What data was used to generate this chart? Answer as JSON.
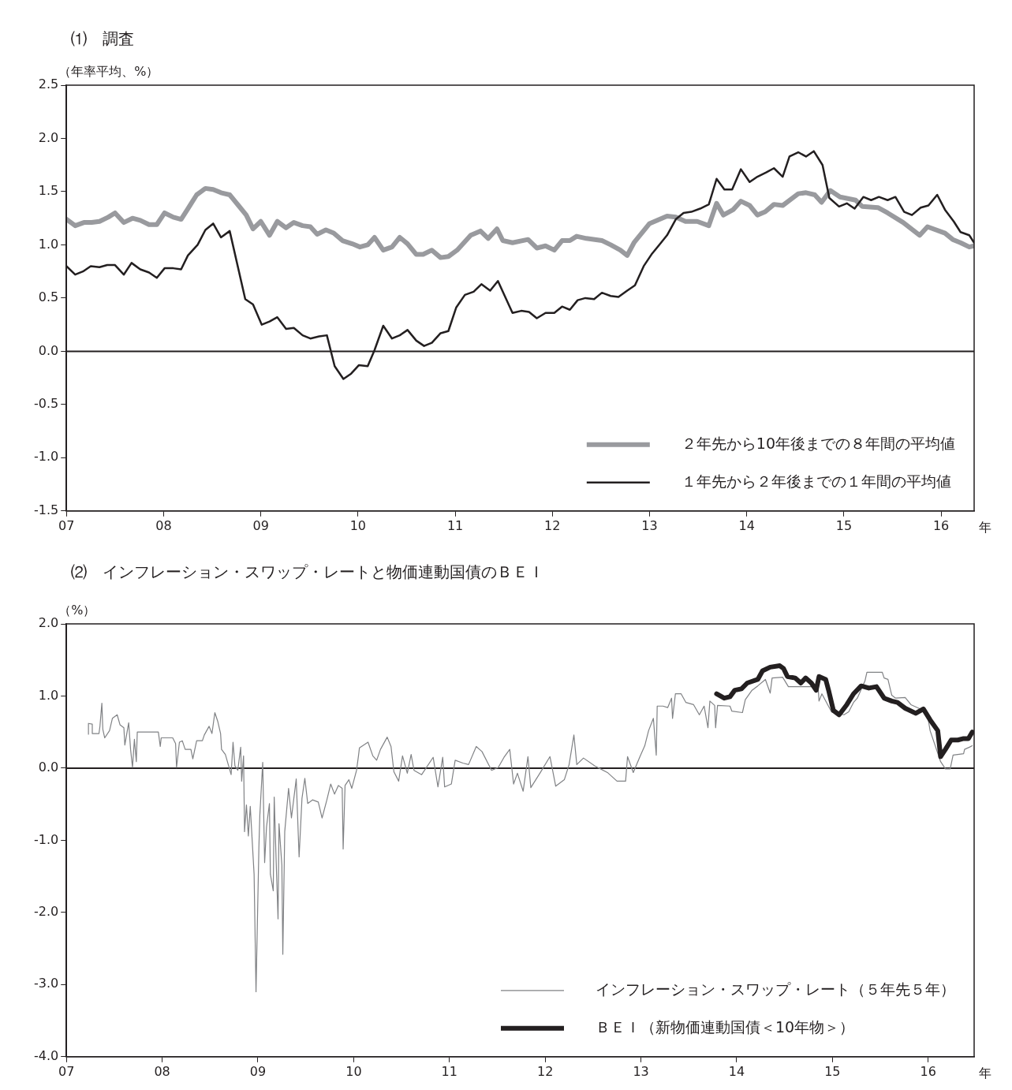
{
  "chart_data": [
    {
      "type": "line",
      "title": "⑴　調査",
      "ylabel": "（年率平均、%）",
      "xlabel": "年",
      "xlim": [
        2007,
        2016.34
      ],
      "xticks": [
        {
          "value": 2007,
          "label": "07"
        },
        {
          "value": 2008,
          "label": "08"
        },
        {
          "value": 2009,
          "label": "09"
        },
        {
          "value": 2010,
          "label": "10"
        },
        {
          "value": 2011,
          "label": "11"
        },
        {
          "value": 2012,
          "label": "12"
        },
        {
          "value": 2013,
          "label": "13"
        },
        {
          "value": 2014,
          "label": "14"
        },
        {
          "value": 2015,
          "label": "15"
        },
        {
          "value": 2016,
          "label": "16"
        }
      ],
      "ylim": [
        -1.5,
        2.5
      ],
      "yticks": [
        {
          "value": -1.5,
          "label": "-1.5"
        },
        {
          "value": -1,
          "label": "-1.0"
        },
        {
          "value": -0.5,
          "label": "-0.5"
        },
        {
          "value": 0,
          "label": "0.0"
        },
        {
          "value": 0.5,
          "label": "0.5"
        },
        {
          "value": 1,
          "label": "1.0"
        },
        {
          "value": 1.5,
          "label": "1.5"
        },
        {
          "value": 2,
          "label": "2.0"
        },
        {
          "value": 2.5,
          "label": "2.5"
        }
      ],
      "grid": false,
      "marker": "none",
      "legend": "bottom right",
      "ref_lines": [
        {
          "axis": "y",
          "value": 0,
          "color": "#231f20"
        }
      ],
      "series": [
        {
          "name": "２年先から10年後までの８年間の平均値",
          "color": "#999a9e",
          "x": [
            2007.0,
            2007.09,
            2007.18,
            2007.26,
            2007.34,
            2007.43,
            2007.5,
            2007.59,
            2007.68,
            2007.76,
            2007.85,
            2007.93,
            2008.01,
            2008.1,
            2008.18,
            2008.25,
            2008.34,
            2008.43,
            2008.51,
            2008.59,
            2008.68,
            2008.77,
            2008.85,
            2008.92,
            2009.0,
            2009.09,
            2009.17,
            2009.26,
            2009.34,
            2009.43,
            2009.51,
            2009.58,
            2009.67,
            2009.75,
            2009.84,
            2009.94,
            2010.02,
            2010.1,
            2010.17,
            2010.26,
            2010.35,
            2010.43,
            2010.51,
            2010.6,
            2010.67,
            2010.76,
            2010.85,
            2010.93,
            2011.02,
            2011.16,
            2011.26,
            2011.34,
            2011.43,
            2011.49,
            2011.59,
            2011.75,
            2011.84,
            2011.93,
            2012.02,
            2012.1,
            2012.18,
            2012.25,
            2012.35,
            2012.51,
            2012.6,
            2012.7,
            2012.77,
            2012.84,
            2013.0,
            2013.18,
            2013.27,
            2013.37,
            2013.49,
            2013.61,
            2013.69,
            2013.76,
            2013.86,
            2013.94,
            2014.03,
            2014.11,
            2014.19,
            2014.28,
            2014.37,
            2014.53,
            2014.61,
            2014.7,
            2014.77,
            2014.86,
            2014.96,
            2015.12,
            2015.19,
            2015.35,
            2015.45,
            2015.61,
            2015.78,
            2015.86,
            2016.04,
            2016.12,
            2016.2,
            2016.29,
            2016.34
          ],
          "values": [
            1.24,
            1.18,
            1.21,
            1.21,
            1.22,
            1.26,
            1.3,
            1.21,
            1.25,
            1.23,
            1.19,
            1.19,
            1.3,
            1.26,
            1.24,
            1.34,
            1.47,
            1.53,
            1.52,
            1.49,
            1.47,
            1.37,
            1.28,
            1.15,
            1.22,
            1.09,
            1.22,
            1.16,
            1.21,
            1.18,
            1.17,
            1.1,
            1.14,
            1.11,
            1.04,
            1.01,
            0.98,
            1.0,
            1.07,
            0.95,
            0.98,
            1.07,
            1.01,
            0.91,
            0.91,
            0.95,
            0.88,
            0.89,
            0.95,
            1.09,
            1.13,
            1.06,
            1.15,
            1.04,
            1.02,
            1.05,
            0.97,
            0.99,
            0.95,
            1.04,
            1.04,
            1.08,
            1.06,
            1.04,
            1.0,
            0.95,
            0.9,
            1.02,
            1.2,
            1.27,
            1.26,
            1.22,
            1.22,
            1.18,
            1.39,
            1.28,
            1.33,
            1.41,
            1.37,
            1.28,
            1.31,
            1.38,
            1.37,
            1.48,
            1.49,
            1.47,
            1.4,
            1.51,
            1.45,
            1.42,
            1.36,
            1.35,
            1.3,
            1.21,
            1.09,
            1.17,
            1.11,
            1.05,
            1.02,
            0.98,
            0.99
          ]
        },
        {
          "name": "１年先から２年後までの１年間の平均値",
          "color": "#231f20",
          "x": [
            2007.0,
            2007.09,
            2007.17,
            2007.25,
            2007.34,
            2007.42,
            2007.5,
            2007.59,
            2007.67,
            2007.76,
            2007.85,
            2007.93,
            2008.01,
            2008.1,
            2008.18,
            2008.25,
            2008.35,
            2008.43,
            2008.51,
            2008.59,
            2008.68,
            2008.84,
            2008.92,
            2009.01,
            2009.09,
            2009.17,
            2009.26,
            2009.34,
            2009.43,
            2009.51,
            2009.6,
            2009.68,
            2009.76,
            2009.85,
            2009.93,
            2010.01,
            2010.1,
            2010.17,
            2010.26,
            2010.35,
            2010.43,
            2010.51,
            2010.6,
            2010.68,
            2010.76,
            2010.85,
            2010.93,
            2011.01,
            2011.1,
            2011.19,
            2011.27,
            2011.36,
            2011.44,
            2011.5,
            2011.59,
            2011.68,
            2011.76,
            2011.84,
            2011.93,
            2012.02,
            2012.1,
            2012.18,
            2012.26,
            2012.34,
            2012.43,
            2012.51,
            2012.6,
            2012.68,
            2012.77,
            2012.85,
            2012.94,
            2013.02,
            2013.1,
            2013.18,
            2013.27,
            2013.35,
            2013.43,
            2013.52,
            2013.61,
            2013.69,
            2013.77,
            2013.85,
            2013.94,
            2014.03,
            2014.11,
            2014.2,
            2014.28,
            2014.37,
            2014.44,
            2014.53,
            2014.61,
            2014.69,
            2014.78,
            2014.85,
            2014.95,
            2015.03,
            2015.11,
            2015.2,
            2015.28,
            2015.36,
            2015.45,
            2015.53,
            2015.62,
            2015.7,
            2015.79,
            2015.87,
            2015.96,
            2016.04,
            2016.13,
            2016.2,
            2016.29,
            2016.34
          ],
          "values": [
            0.8,
            0.72,
            0.75,
            0.8,
            0.79,
            0.81,
            0.81,
            0.72,
            0.83,
            0.77,
            0.74,
            0.69,
            0.78,
            0.78,
            0.77,
            0.9,
            1.0,
            1.14,
            1.2,
            1.07,
            1.13,
            0.49,
            0.44,
            0.25,
            0.28,
            0.32,
            0.21,
            0.22,
            0.15,
            0.12,
            0.14,
            0.15,
            -0.14,
            -0.26,
            -0.21,
            -0.13,
            -0.14,
            0.01,
            0.24,
            0.12,
            0.15,
            0.2,
            0.1,
            0.05,
            0.08,
            0.17,
            0.19,
            0.41,
            0.53,
            0.56,
            0.63,
            0.57,
            0.66,
            0.54,
            0.36,
            0.38,
            0.37,
            0.31,
            0.36,
            0.36,
            0.42,
            0.39,
            0.48,
            0.5,
            0.49,
            0.55,
            0.52,
            0.51,
            0.57,
            0.62,
            0.8,
            0.91,
            1.0,
            1.09,
            1.24,
            1.3,
            1.31,
            1.34,
            1.38,
            1.62,
            1.52,
            1.52,
            1.71,
            1.59,
            1.64,
            1.68,
            1.72,
            1.64,
            1.83,
            1.87,
            1.83,
            1.88,
            1.75,
            1.44,
            1.36,
            1.39,
            1.34,
            1.45,
            1.42,
            1.45,
            1.42,
            1.45,
            1.31,
            1.28,
            1.35,
            1.37,
            1.47,
            1.33,
            1.22,
            1.12,
            1.09,
            1.02
          ]
        }
      ]
    },
    {
      "type": "line",
      "title": "⑵　インフレーション・スワップ・レートと物価連動国債のＢＥＩ",
      "ylabel": "（%）",
      "xlabel": "年",
      "xlim": [
        2007,
        2016.48
      ],
      "xticks": [
        {
          "value": 2007,
          "label": "07"
        },
        {
          "value": 2008,
          "label": "08"
        },
        {
          "value": 2009,
          "label": "09"
        },
        {
          "value": 2010,
          "label": "10"
        },
        {
          "value": 2011,
          "label": "11"
        },
        {
          "value": 2012,
          "label": "12"
        },
        {
          "value": 2013,
          "label": "13"
        },
        {
          "value": 2014,
          "label": "14"
        },
        {
          "value": 2015,
          "label": "15"
        },
        {
          "value": 2016,
          "label": "16"
        }
      ],
      "ylim": [
        -4,
        2
      ],
      "yticks": [
        {
          "value": -4,
          "label": "-4.0"
        },
        {
          "value": -3,
          "label": "-3.0"
        },
        {
          "value": -2,
          "label": "-2.0"
        },
        {
          "value": -1,
          "label": "-1.0"
        },
        {
          "value": 0,
          "label": "0.0"
        },
        {
          "value": 1,
          "label": "1.0"
        },
        {
          "value": 2,
          "label": "2.0"
        }
      ],
      "grid": false,
      "marker": "none",
      "legend": "bottom right",
      "ref_lines": [
        {
          "axis": "y",
          "value": 0,
          "color": "#231f20"
        }
      ],
      "series": [
        {
          "name": "インフレーション・スワップ・レート（５年先５年）",
          "color": "#808285",
          "x": [
            2007.23,
            2007.23,
            2007.27,
            2007.27,
            2007.34,
            2007.35,
            2007.37,
            2007.38,
            2007.4,
            2007.45,
            2007.48,
            2007.53,
            2007.56,
            2007.6,
            2007.61,
            2007.65,
            2007.67,
            2007.69,
            2007.71,
            2007.73,
            2007.74,
            2007.96,
            2007.98,
            2007.99,
            2008.11,
            2008.14,
            2008.15,
            2008.18,
            2008.21,
            2008.24,
            2008.3,
            2008.32,
            2008.36,
            2008.42,
            2008.44,
            2008.49,
            2008.52,
            2008.55,
            2008.58,
            2008.61,
            2008.62,
            2008.66,
            2008.72,
            2008.74,
            2008.76,
            2008.79,
            2008.82,
            2008.83,
            2008.85,
            2008.86,
            2008.88,
            2008.9,
            2008.92,
            2008.96,
            2008.98,
            2009.01,
            2009.02,
            2009.05,
            2009.07,
            2009.09,
            2009.12,
            2009.13,
            2009.16,
            2009.17,
            2009.19,
            2009.21,
            2009.22,
            2009.25,
            2009.26,
            2009.28,
            2009.32,
            2009.35,
            2009.4,
            2009.43,
            2009.46,
            2009.49,
            2009.52,
            2009.57,
            2009.63,
            2009.67,
            2009.72,
            2009.76,
            2009.8,
            2009.84,
            2009.88,
            2009.89,
            2009.91,
            2009.95,
            2009.98,
            2010.03,
            2010.05,
            2010.06,
            2010.15,
            2010.2,
            2010.24,
            2010.28,
            2010.35,
            2010.39,
            2010.42,
            2010.47,
            2010.51,
            2010.56,
            2010.6,
            2010.63,
            2010.71,
            2010.83,
            2010.88,
            2010.93,
            2010.95,
            2011.02,
            2011.06,
            2011.14,
            2011.2,
            2011.28,
            2011.34,
            2011.44,
            2011.51,
            2011.57,
            2011.63,
            2011.67,
            2011.71,
            2011.77,
            2011.82,
            2011.85,
            2011.95,
            2012.05,
            2012.11,
            2012.2,
            2012.25,
            2012.3,
            2012.33,
            2012.4,
            2012.52,
            2012.65,
            2012.75,
            2012.84,
            2012.86,
            2012.92,
            2012.99,
            2013.04,
            2013.08,
            2013.13,
            2013.16,
            2013.17,
            2013.23,
            2013.28,
            2013.32,
            2013.33,
            2013.36,
            2013.42,
            2013.47,
            2013.55,
            2013.61,
            2013.66,
            2013.7,
            2013.72,
            2013.77,
            2013.78,
            2013.8,
            2013.93,
            2013.95,
            2014.06,
            2014.09,
            2014.16,
            2014.22,
            2014.3,
            2014.35,
            2014.37,
            2014.48,
            2014.54,
            2014.85,
            2014.86,
            2014.89,
            2014.99,
            2015.12,
            2015.17,
            2015.22,
            2015.26,
            2015.34,
            2015.36,
            2015.52,
            2015.54,
            2015.58,
            2015.62,
            2015.66,
            2015.76,
            2015.82,
            2015.92,
            2015.99,
            2016.02,
            2016.13,
            2016.18,
            2016.23,
            2016.26,
            2016.37,
            2016.38,
            2016.43,
            2016.46
          ],
          "values": [
            0.47,
            0.62,
            0.61,
            0.48,
            0.48,
            0.58,
            0.9,
            0.54,
            0.42,
            0.52,
            0.69,
            0.74,
            0.6,
            0.56,
            0.32,
            0.63,
            0.26,
            0.01,
            0.4,
            0.09,
            0.5,
            0.5,
            0.3,
            0.42,
            0.42,
            0.34,
            0.01,
            0.36,
            0.38,
            0.26,
            0.26,
            0.13,
            0.38,
            0.38,
            0.46,
            0.58,
            0.48,
            0.77,
            0.65,
            0.48,
            0.26,
            0.19,
            -0.09,
            0.36,
            0.03,
            -0.03,
            0.29,
            -0.18,
            0.17,
            -0.88,
            -0.51,
            -0.94,
            -0.53,
            -1.47,
            -3.1,
            -1.1,
            -0.65,
            0.08,
            -1.31,
            -0.81,
            -0.49,
            -1.47,
            -1.7,
            -0.4,
            -1.27,
            -2.09,
            -0.77,
            -1.35,
            -2.58,
            -0.88,
            -0.28,
            -0.69,
            -0.15,
            -1.23,
            -0.42,
            -0.14,
            -0.49,
            -0.44,
            -0.47,
            -0.69,
            -0.44,
            -0.22,
            -0.36,
            -0.24,
            -0.28,
            -1.12,
            -0.24,
            -0.16,
            -0.28,
            -0.03,
            0.17,
            0.28,
            0.36,
            0.17,
            0.11,
            0.26,
            0.43,
            0.3,
            -0.05,
            -0.18,
            0.17,
            -0.07,
            0.19,
            -0.03,
            -0.09,
            0.15,
            -0.26,
            0.15,
            -0.26,
            -0.22,
            0.11,
            0.07,
            0.05,
            0.3,
            0.23,
            -0.03,
            0.01,
            0.15,
            0.26,
            -0.22,
            -0.07,
            -0.32,
            0.16,
            -0.27,
            -0.06,
            0.16,
            -0.25,
            -0.16,
            0.05,
            0.46,
            0.05,
            0.14,
            0.03,
            -0.06,
            -0.18,
            -0.18,
            0.16,
            -0.06,
            0.16,
            0.31,
            0.52,
            0.69,
            0.18,
            0.86,
            0.86,
            0.84,
            0.97,
            0.69,
            1.03,
            1.03,
            0.91,
            0.88,
            0.74,
            0.86,
            0.56,
            0.93,
            0.87,
            0.56,
            0.87,
            0.86,
            0.79,
            0.77,
            0.95,
            1.08,
            1.14,
            1.23,
            1.04,
            1.25,
            1.26,
            1.13,
            1.13,
            0.93,
            1.03,
            0.78,
            0.74,
            0.78,
            0.91,
            0.97,
            1.21,
            1.33,
            1.33,
            1.25,
            1.23,
            1.01,
            0.97,
            0.98,
            0.88,
            0.82,
            0.76,
            0.52,
            0.09,
            -0.01,
            -0.01,
            0.18,
            0.2,
            0.26,
            0.29,
            0.31
          ]
        },
        {
          "name": "ＢＥＩ（新物価連動国債＜10年物＞）",
          "color": "#231f20",
          "x": [
            2013.79,
            2013.87,
            2013.93,
            2013.98,
            2014.05,
            2014.11,
            2014.22,
            2014.27,
            2014.35,
            2014.45,
            2014.49,
            2014.53,
            2014.61,
            2014.67,
            2014.72,
            2014.78,
            2014.83,
            2014.86,
            2014.93,
            2014.96,
            2015.01,
            2015.07,
            2015.15,
            2015.22,
            2015.3,
            2015.38,
            2015.46,
            2015.54,
            2015.62,
            2015.68,
            2015.76,
            2015.87,
            2015.95,
            2016.02,
            2016.1,
            2016.13,
            2016.18,
            2016.24,
            2016.31,
            2016.37,
            2016.42,
            2016.46
          ],
          "values": [
            1.03,
            0.97,
            0.99,
            1.08,
            1.1,
            1.18,
            1.23,
            1.35,
            1.4,
            1.42,
            1.38,
            1.27,
            1.25,
            1.18,
            1.25,
            1.18,
            1.08,
            1.27,
            1.23,
            1.08,
            0.8,
            0.74,
            0.88,
            1.03,
            1.14,
            1.11,
            1.13,
            0.97,
            0.93,
            0.91,
            0.83,
            0.76,
            0.82,
            0.67,
            0.52,
            0.16,
            0.26,
            0.39,
            0.39,
            0.41,
            0.41,
            0.5
          ]
        }
      ]
    }
  ]
}
